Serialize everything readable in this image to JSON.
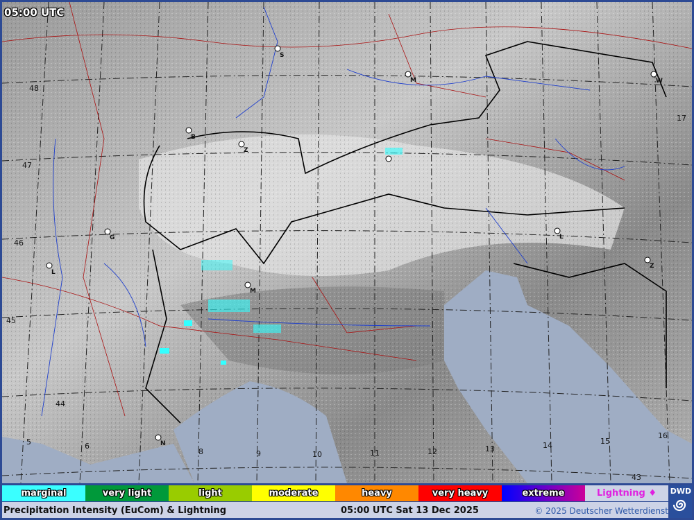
{
  "map": {
    "timestamp": "05:00 UTC",
    "latitude_labels": [
      "48",
      "47",
      "46",
      "45",
      "44",
      "43"
    ],
    "longitude_labels": [
      "5",
      "6",
      "8",
      "9",
      "10",
      "11",
      "12",
      "13",
      "14",
      "15",
      "16",
      "17"
    ],
    "cities": [
      "S",
      "M",
      "W",
      "B",
      "Z",
      "G",
      "L",
      "M",
      "L",
      "Z",
      "N"
    ],
    "colors": {
      "land": "#a9a9a9",
      "sea": "#9fadc4",
      "rivers": "#1f3fcc",
      "borders": "#000000",
      "regions": "#aa1111",
      "precip": "#33ffff"
    }
  },
  "legend": {
    "items": [
      {
        "label": "marginal",
        "color": "#3affff"
      },
      {
        "label": "very light",
        "color": "#00993a"
      },
      {
        "label": "light",
        "color": "#99cc00"
      },
      {
        "label": "moderate",
        "color": "#ffff00"
      },
      {
        "label": "heavy",
        "color": "#ff8800"
      },
      {
        "label": "very heavy",
        "color": "#ff0000"
      },
      {
        "label": "extreme",
        "color": "#0000ff"
      },
      {
        "label": "Lightning ♦",
        "color": "#cdd3e6"
      }
    ]
  },
  "footer": {
    "title": "Precipitation Intensity (EuCom) & Lightning",
    "datetime": "05:00 UTC Sat 13 Dec 2025",
    "copyright": "© 2025 Deutscher Wetterdienst",
    "logo": "DWD"
  }
}
